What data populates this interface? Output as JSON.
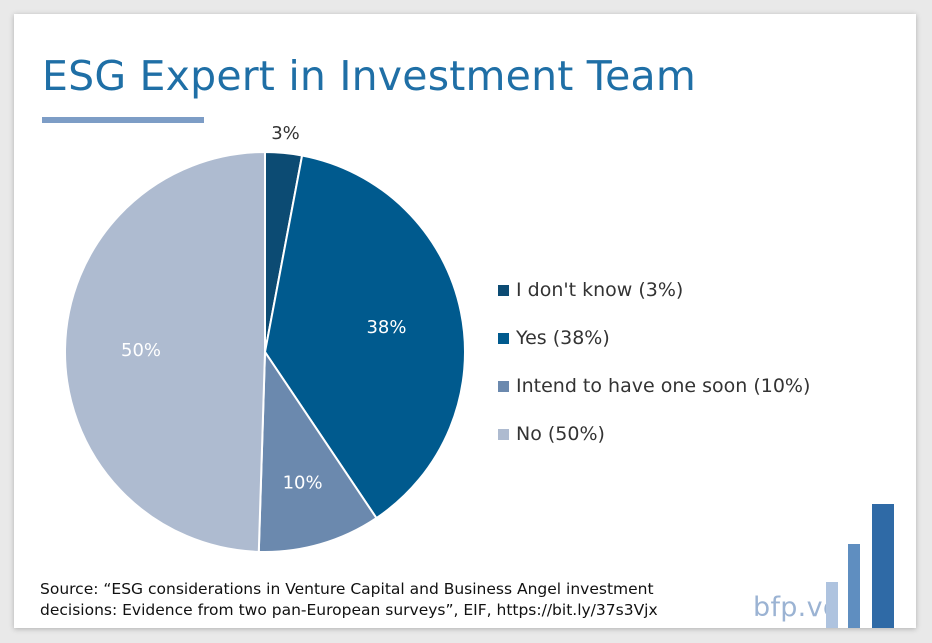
{
  "title": "ESG Expert in Investment Team",
  "chart_data": {
    "type": "pie",
    "title": "ESG Expert in Investment Team",
    "slices": [
      {
        "label": "I don't know",
        "value": 3,
        "value_label": "3%",
        "legend": "I don't know (3%)",
        "color": "#0c4b73"
      },
      {
        "label": "Yes",
        "value": 38,
        "value_label": "38%",
        "legend": "Yes (38%)",
        "color": "#005a8e"
      },
      {
        "label": "Intend to have one soon",
        "value": 10,
        "value_label": "10%",
        "legend": "Intend to have one soon (10%)",
        "color": "#6b89ae"
      },
      {
        "label": "No",
        "value": 50,
        "value_label": "50%",
        "legend": "No (50%)",
        "color": "#aebbd0"
      }
    ],
    "legend_position": "right"
  },
  "source": {
    "line1": "Source: “ESG considerations in Venture Capital and Business Angel investment",
    "line2": "decisions: Evidence from two pan-European surveys”, EIF, https://bit.ly/37s3Vjx"
  },
  "brand": {
    "text": "bfp.vc",
    "logo_colors": [
      "#aec3df",
      "#5f8ec0",
      "#2f6aa6"
    ]
  }
}
